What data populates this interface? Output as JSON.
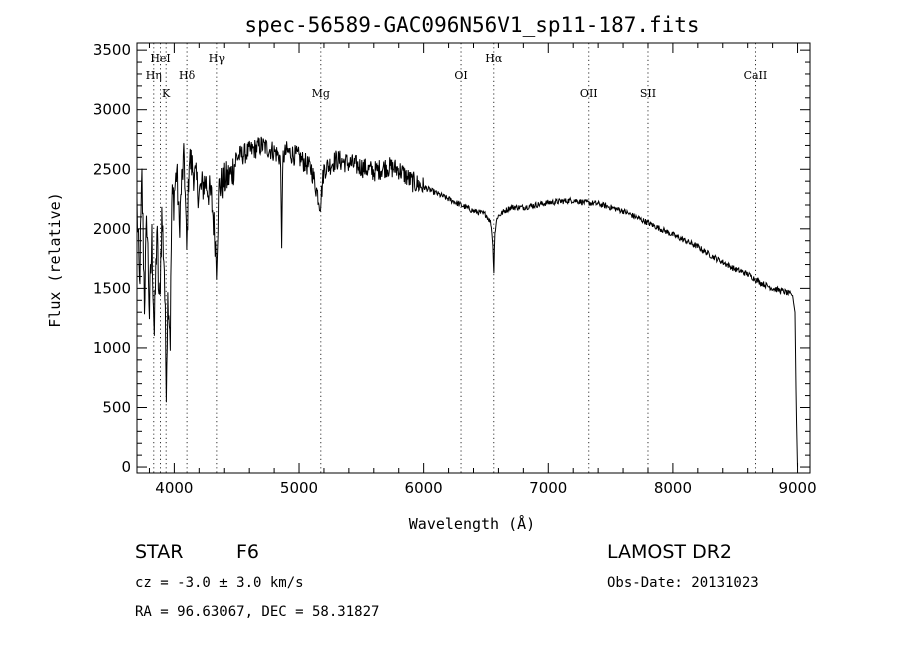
{
  "chart_data": {
    "type": "line",
    "title": "spec-56589-GAC096N56V1_sp11-187.fits",
    "xlabel": "Wavelength (Å)",
    "ylabel": "Flux (relative)",
    "xlim": [
      3700,
      9100
    ],
    "ylim": [
      -50,
      3560
    ],
    "xticks": [
      4000,
      5000,
      6000,
      7000,
      8000,
      9000
    ],
    "yticks": [
      0,
      500,
      1000,
      1500,
      2000,
      2500,
      3000,
      3500
    ],
    "grid": false,
    "series_color": "#000000",
    "spectral_lines": [
      {
        "label": "HeI",
        "x": 3889,
        "row": 0
      },
      {
        "label": "Hη",
        "x": 3835,
        "row": 1
      },
      {
        "label": "K",
        "x": 3934,
        "row": 2
      },
      {
        "label": "Hδ",
        "x": 4102,
        "row": 1
      },
      {
        "label": "Hγ",
        "x": 4341,
        "row": 0
      },
      {
        "label": "Mg",
        "x": 5175,
        "row": 2
      },
      {
        "label": "OI",
        "x": 6300,
        "row": 1
      },
      {
        "label": "Hα",
        "x": 6563,
        "row": 0
      },
      {
        "label": "OII",
        "x": 7325,
        "row": 2
      },
      {
        "label": "SII",
        "x": 7800,
        "row": 2
      },
      {
        "label": "CaII",
        "x": 8662,
        "row": 1
      }
    ],
    "series": [
      {
        "x": [
          3700,
          3720,
          3740,
          3760,
          3780,
          3800,
          3820,
          3840,
          3860,
          3880,
          3900,
          3920,
          3935,
          3950,
          3968,
          3980,
          4000,
          4020,
          4040,
          4060,
          4080,
          4100,
          4120,
          4150,
          4200,
          4250,
          4300,
          4330,
          4340,
          4360,
          4400,
          4450,
          4500,
          4600,
          4700,
          4800,
          4850,
          4861,
          4870,
          4900,
          5000,
          5100,
          5170,
          5200,
          5300,
          5400,
          5500,
          5600,
          5700,
          5800,
          5850,
          5900,
          6000,
          6100,
          6200,
          6300,
          6400,
          6500,
          6540,
          6555,
          6563,
          6570,
          6590,
          6650,
          6700,
          6800,
          6900,
          7000,
          7100,
          7200,
          7300,
          7400,
          7500,
          7600,
          7700,
          7800,
          7900,
          8000,
          8100,
          8200,
          8300,
          8400,
          8500,
          8600,
          8700,
          8800,
          8900,
          8960,
          8980,
          8990,
          9000
        ],
        "y": [
          2200,
          1500,
          2400,
          1400,
          2100,
          1300,
          1900,
          1100,
          2000,
          1300,
          2100,
          1700,
          700,
          1500,
          1100,
          2200,
          2300,
          2500,
          2000,
          2400,
          2600,
          1800,
          2600,
          2500,
          2300,
          2400,
          2250,
          1900,
          1700,
          2350,
          2400,
          2450,
          2600,
          2650,
          2700,
          2650,
          2600,
          1850,
          2600,
          2650,
          2600,
          2500,
          2200,
          2500,
          2580,
          2550,
          2520,
          2480,
          2520,
          2500,
          2450,
          2400,
          2350,
          2300,
          2250,
          2200,
          2150,
          2120,
          2050,
          1900,
          1600,
          1950,
          2100,
          2150,
          2180,
          2180,
          2200,
          2220,
          2230,
          2240,
          2220,
          2210,
          2180,
          2150,
          2100,
          2050,
          2000,
          1950,
          1900,
          1850,
          1780,
          1720,
          1660,
          1620,
          1550,
          1500,
          1470,
          1440,
          1300,
          500,
          0
        ]
      }
    ]
  },
  "info": {
    "object_class": "STAR",
    "subclass": "F6",
    "survey": "LAMOST DR2",
    "redshift": "cz = -3.0 ± 3.0 km/s",
    "obs_date": "Obs-Date: 20131023",
    "coordinates": "RA =  96.63067, DEC =  58.31827"
  }
}
